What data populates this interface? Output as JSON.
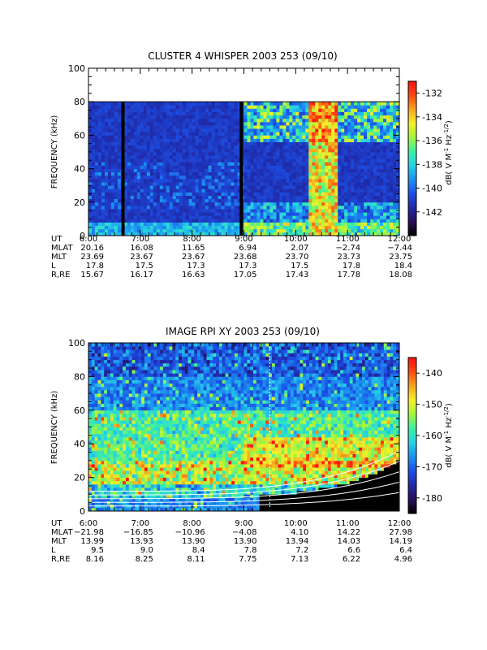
{
  "chart_data": [
    {
      "type": "heatmap",
      "title": "CLUSTER 4 WHISPER 2003 253 (09/10)",
      "ylabel": "FREQUENCY (kHz)",
      "ylim": [
        0,
        100
      ],
      "yticks": [
        0,
        20,
        40,
        60,
        80,
        100
      ],
      "x_range": [
        "6:00",
        "12:00"
      ],
      "colorbar": {
        "label": "dB( V M⁻¹ Hz⁻¹ᐟ²)",
        "label_main": "dB( V M",
        "label_sup1": "-1",
        "label_mid": " Hz",
        "label_sup2": "-1/2",
        "label_end": ")",
        "ticks": [
          -132,
          -134,
          -136,
          -138,
          -140,
          -142
        ],
        "range": [
          -144,
          -131
        ],
        "colors": [
          "#000000",
          "#2a0f5a",
          "#1f2aa8",
          "#1d50e6",
          "#1c92f0",
          "#27d2e6",
          "#3cf0a0",
          "#a5f53c",
          "#f5f02a",
          "#f5a51e",
          "#ff4a12",
          "#ff1010"
        ]
      },
      "features": {
        "data_top_khz": 80,
        "data_gaps_utc": [
          "6:40",
          "8:57"
        ],
        "gap_note": "",
        "intense_band": [
          "10:15",
          "10:48"
        ]
      },
      "ephemeris": {
        "row_labels": [
          "UT",
          "MLAT",
          "MLT",
          "L",
          "R,RE"
        ],
        "columns": [
          {
            "UT": "6:00",
            "MLAT": "20.16",
            "MLT": "23.69",
            "L": "17.8",
            "R,RE": "15.67"
          },
          {
            "UT": "7:00",
            "MLAT": "16.08",
            "MLT": "23.67",
            "L": "17.5",
            "R,RE": "16.17"
          },
          {
            "UT": "8:00",
            "MLAT": "11.65",
            "MLT": "23.67",
            "L": "17.3",
            "R,RE": "16.63"
          },
          {
            "UT": "9:00",
            "MLAT": "6.94",
            "MLT": "23.68",
            "L": "17.3",
            "R,RE": "17.05"
          },
          {
            "UT": "10:00",
            "MLAT": "2.07",
            "MLT": "23.70",
            "L": "17.5",
            "R,RE": "17.43"
          },
          {
            "UT": "11:00",
            "MLAT": "−2.74",
            "MLT": "23.73",
            "L": "17.8",
            "R,RE": "17.78"
          },
          {
            "UT": "12:00",
            "MLAT": "−7.44",
            "MLT": "23.75",
            "L": "18.4",
            "R,RE": "18.08"
          }
        ]
      }
    },
    {
      "type": "heatmap",
      "title": "IMAGE RPI XY 2003 253 (09/10)",
      "ylabel": "FREQUENCY (kHz)",
      "ylim": [
        0,
        100
      ],
      "yticks": [
        0,
        20,
        40,
        60,
        80,
        100
      ],
      "x_range": [
        "6:00",
        "12:00"
      ],
      "colorbar": {
        "label_main": "dB( V M",
        "label_sup1": "-1",
        "label_mid": " Hz",
        "label_sup2": "-1/2",
        "label_end": ")",
        "ticks": [
          -140,
          -150,
          -160,
          -170,
          -180
        ],
        "range": [
          -185,
          -135
        ],
        "colors": [
          "#000000",
          "#2a0f5a",
          "#1f2aa8",
          "#1d50e6",
          "#1c92f0",
          "#27d2e6",
          "#3cf0a0",
          "#a5f53c",
          "#f5f02a",
          "#f5a51e",
          "#ff4a12",
          "#ff1010"
        ]
      },
      "features": {
        "white_curves": 5,
        "cutoff_line_utc": "9:30"
      },
      "ephemeris": {
        "row_labels": [
          "UT",
          "MLAT",
          "MLT",
          "L",
          "R,RE"
        ],
        "columns": [
          {
            "UT": "6:00",
            "MLAT": "−21.98",
            "MLT": "13.99",
            "L": "9.5",
            "R,RE": "8.16"
          },
          {
            "UT": "7:00",
            "MLAT": "−16.85",
            "MLT": "13.93",
            "L": "9.0",
            "R,RE": "8.25"
          },
          {
            "UT": "8:00",
            "MLAT": "−10.96",
            "MLT": "13.90",
            "L": "8.4",
            "R,RE": "8.11"
          },
          {
            "UT": "9:00",
            "MLAT": "−4.08",
            "MLT": "13.90",
            "L": "7.8",
            "R,RE": "7.75"
          },
          {
            "UT": "10:00",
            "MLAT": "4.10",
            "MLT": "13.94",
            "L": "7.2",
            "R,RE": "7.13"
          },
          {
            "UT": "11:00",
            "MLAT": "14.22",
            "MLT": "14.03",
            "L": "6.6",
            "R,RE": "6.22"
          },
          {
            "UT": "12:00",
            "MLAT": "27.98",
            "MLT": "14.19",
            "L": "6.4",
            "R,RE": "4.96"
          }
        ]
      }
    }
  ]
}
